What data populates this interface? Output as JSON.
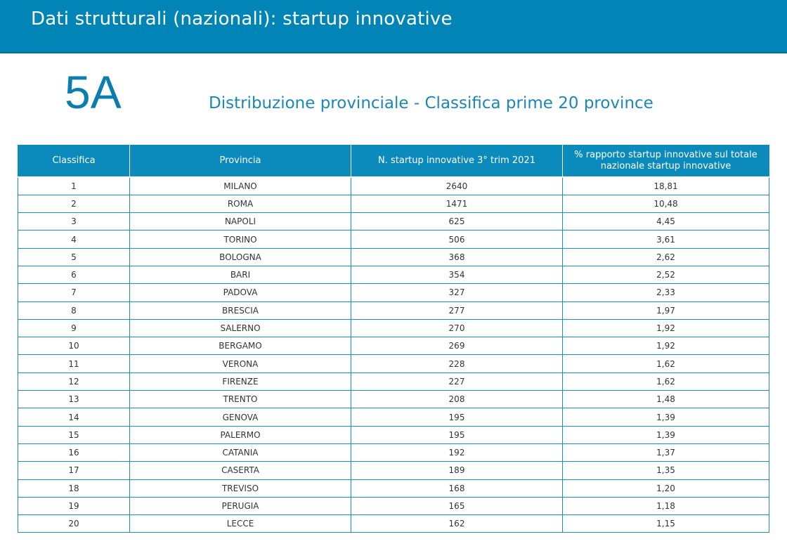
{
  "header": {
    "title": "Dati strutturali (nazionali): startup innovative"
  },
  "section": {
    "number": "5A",
    "title": "Distribuzione provinciale - Classifica prime 20 province"
  },
  "table": {
    "columns": [
      "Classifica",
      "Provincia",
      "N. startup innovative 3° trim 2021",
      "% rapporto startup innovative sul totale nazionale startup innovative"
    ],
    "rows": [
      [
        "1",
        "MILANO",
        "2640",
        "18,81"
      ],
      [
        "2",
        "ROMA",
        "1471",
        "10,48"
      ],
      [
        "3",
        "NAPOLI",
        "625",
        "4,45"
      ],
      [
        "4",
        "TORINO",
        "506",
        "3,61"
      ],
      [
        "5",
        "BOLOGNA",
        "368",
        "2,62"
      ],
      [
        "6",
        "BARI",
        "354",
        "2,52"
      ],
      [
        "7",
        "PADOVA",
        "327",
        "2,33"
      ],
      [
        "8",
        "BRESCIA",
        "277",
        "1,97"
      ],
      [
        "9",
        "SALERNO",
        "270",
        "1,92"
      ],
      [
        "10",
        "BERGAMO",
        "269",
        "1,92"
      ],
      [
        "11",
        "VERONA",
        "228",
        "1,62"
      ],
      [
        "12",
        "FIRENZE",
        "227",
        "1,62"
      ],
      [
        "13",
        "TRENTO",
        "208",
        "1,48"
      ],
      [
        "14",
        "GENOVA",
        "195",
        "1,39"
      ],
      [
        "15",
        "PALERMO",
        "195",
        "1,39"
      ],
      [
        "16",
        "CATANIA",
        "192",
        "1,37"
      ],
      [
        "17",
        "CASERTA",
        "189",
        "1,35"
      ],
      [
        "18",
        "TREVISO",
        "168",
        "1,20"
      ],
      [
        "19",
        "PERUGIA",
        "165",
        "1,18"
      ],
      [
        "20",
        "LECCE",
        "162",
        "1,15"
      ]
    ]
  },
  "colors": {
    "header_background": "#0085b6",
    "accent_text": "#0a7eaf",
    "table_header_background": "#0a8bbc",
    "table_border": "#1590c0"
  }
}
